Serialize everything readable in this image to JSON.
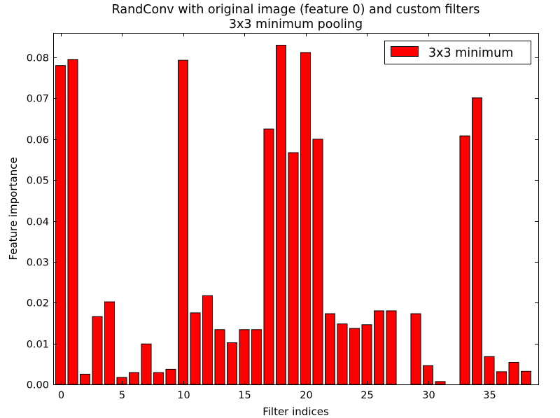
{
  "chart_data": {
    "type": "bar",
    "title": "RandConv with original image (feature 0) and custom filters",
    "subtitle": "3x3 minimum pooling",
    "xlabel": "Filter indices",
    "ylabel": "Feature importance",
    "xlim": [
      -0.6,
      39.0
    ],
    "ylim": [
      0,
      0.086
    ],
    "xticks": [
      0,
      5,
      10,
      15,
      20,
      25,
      30,
      35
    ],
    "yticks": [
      0.0,
      0.01,
      0.02,
      0.03,
      0.04,
      0.05,
      0.06,
      0.07,
      0.08
    ],
    "ytick_labels": [
      "0.00",
      "0.01",
      "0.02",
      "0.03",
      "0.04",
      "0.05",
      "0.06",
      "0.07",
      "0.08"
    ],
    "legend_position": "top-right",
    "series": [
      {
        "name": "3x3 minimum",
        "color": "#ff0000",
        "x": [
          0,
          1,
          2,
          3,
          4,
          5,
          6,
          7,
          8,
          9,
          10,
          11,
          12,
          13,
          14,
          15,
          16,
          17,
          18,
          19,
          20,
          21,
          22,
          23,
          24,
          25,
          26,
          27,
          28,
          29,
          30,
          31,
          32,
          33,
          34,
          35,
          36,
          37,
          38
        ],
        "values": [
          0.078,
          0.0795,
          0.0025,
          0.0166,
          0.0202,
          0.0017,
          0.0029,
          0.0099,
          0.0029,
          0.0037,
          0.0793,
          0.0175,
          0.0217,
          0.0134,
          0.0102,
          0.0134,
          0.0134,
          0.0625,
          0.083,
          0.0567,
          0.0812,
          0.06,
          0.0173,
          0.0148,
          0.0137,
          0.0146,
          0.018,
          0.018,
          0.0,
          0.0173,
          0.0046,
          0.0007,
          0.0,
          0.0608,
          0.0701,
          0.0068,
          0.0031,
          0.0054,
          0.0032
        ]
      }
    ]
  }
}
